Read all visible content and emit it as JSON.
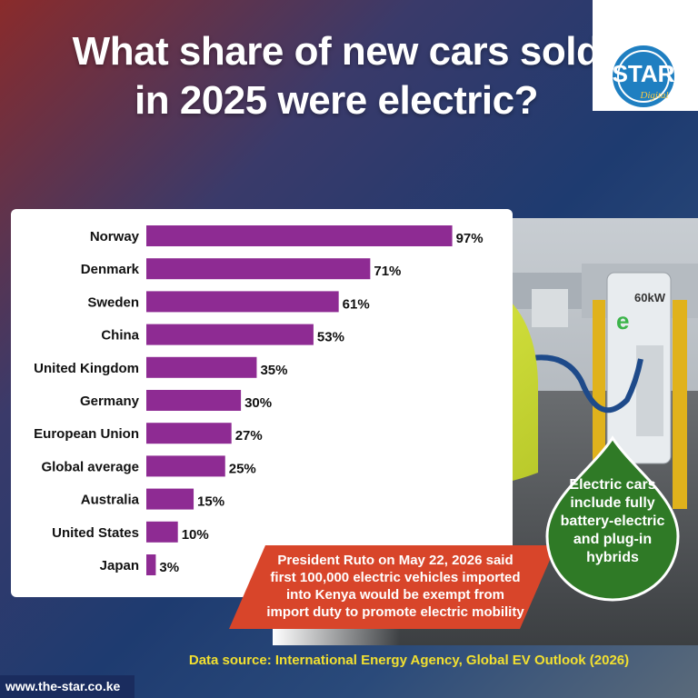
{
  "headline": "What share of new cars sold in 2025 were electric?",
  "logo": {
    "brand": "STAR",
    "sub": "Digital"
  },
  "chart_data": {
    "type": "bar",
    "orientation": "horizontal",
    "title": "What share of new cars sold in 2025 were electric?",
    "categories": [
      "Norway",
      "Denmark",
      "Sweden",
      "China",
      "United Kingdom",
      "Germany",
      "European Union",
      "Global average",
      "Australia",
      "United States",
      "Japan"
    ],
    "values": [
      97,
      71,
      61,
      53,
      35,
      30,
      27,
      25,
      15,
      10,
      3
    ],
    "value_labels": [
      "97%",
      "71%",
      "61%",
      "53%",
      "35%",
      "30%",
      "27%",
      "25%",
      "15%",
      "10%",
      "3%"
    ],
    "unit": "%",
    "xlim": [
      0,
      100
    ],
    "grid": false,
    "legend": "none",
    "bar_color": "#8e2b93"
  },
  "note": "President Ruto on May 22, 2026 said  first 100,000 electric vehicles imported into Kenya would be exempt from import duty to promote electric mobility",
  "callout": "Electric cars include fully battery-electric and plug-in hybrids",
  "source": "Data source: International Energy Agency, Global EV Outlook (2026)",
  "url": "www.the-star.co.ke",
  "charger_label": "60kW",
  "colors": {
    "bar": "#8e2b93",
    "note_bg": "#d8452a",
    "callout_bg": "#2f7a26",
    "source_text": "#f2e030",
    "url_bg": "#1a2c5e"
  }
}
